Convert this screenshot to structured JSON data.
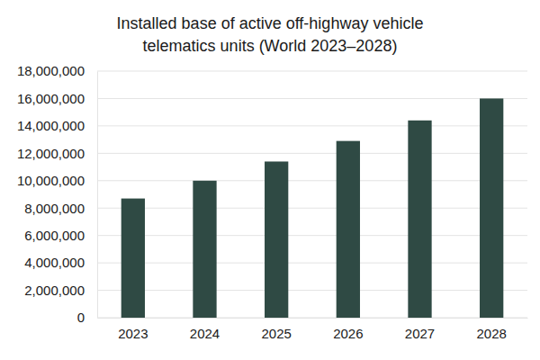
{
  "chart_data": {
    "type": "bar",
    "title": "Installed base of active off-highway vehicle\ntelematics units (World 2023–2028)",
    "categories": [
      "2023",
      "2024",
      "2025",
      "2026",
      "2027",
      "2028"
    ],
    "values": [
      8700000,
      10000000,
      11400000,
      12900000,
      14400000,
      16000000
    ],
    "color": "#2f4a44",
    "ylim": [
      0,
      18000000
    ],
    "yticks": [
      0,
      {
        "value": 2000000,
        "label": "2,000,000"
      },
      {
        "value": 4000000,
        "label": "4,000,000"
      },
      {
        "value": 6000000,
        "label": "6,000,000"
      },
      {
        "value": 8000000,
        "label": "8,000,000"
      },
      {
        "value": 10000000,
        "label": "10,000,000"
      },
      {
        "value": 12000000,
        "label": "12,000,000"
      },
      {
        "value": 14000000,
        "label": "14,000,000"
      },
      {
        "value": 16000000,
        "label": "16,000,000"
      },
      {
        "value": 18000000,
        "label": "18,000,000"
      }
    ],
    "grid": true
  }
}
